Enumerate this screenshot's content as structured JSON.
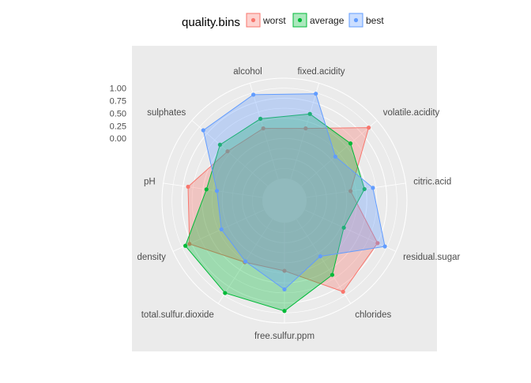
{
  "chart_data": {
    "type": "radar",
    "legend": {
      "title": "quality.bins",
      "position": "top"
    },
    "axes": [
      "fixed.acidity",
      "volatile.acidity",
      "citric.acid",
      "residual.sugar",
      "chlorides",
      "free.sulfur.ppm",
      "total.sulfur.dioxide",
      "density",
      "pH",
      "sulphates",
      "alcohol"
    ],
    "radial_ticks": [
      "0.00",
      "0.25",
      "0.50",
      "0.75",
      "1.00"
    ],
    "rlim": [
      -0.8,
      1.2
    ],
    "grid": true,
    "series": [
      {
        "name": "worst",
        "color": "#F8766D",
        "values": [
          0.26,
          0.98,
          0.09,
          0.8,
          0.92,
          0.16,
          0.22,
          0.84,
          0.7,
          0.26,
          0.26
        ]
      },
      {
        "name": "average",
        "color": "#00BA38",
        "values": [
          0.56,
          0.5,
          0.37,
          0.06,
          0.52,
          0.96,
          0.95,
          0.93,
          0.33,
          0.46,
          0.46
        ]
      },
      {
        "name": "best",
        "color": "#619CFF",
        "values": [
          0.98,
          0.1,
          0.54,
          0.96,
          0.08,
          0.53,
          0.2,
          0.14,
          0.12,
          0.9,
          0.96
        ]
      }
    ]
  }
}
